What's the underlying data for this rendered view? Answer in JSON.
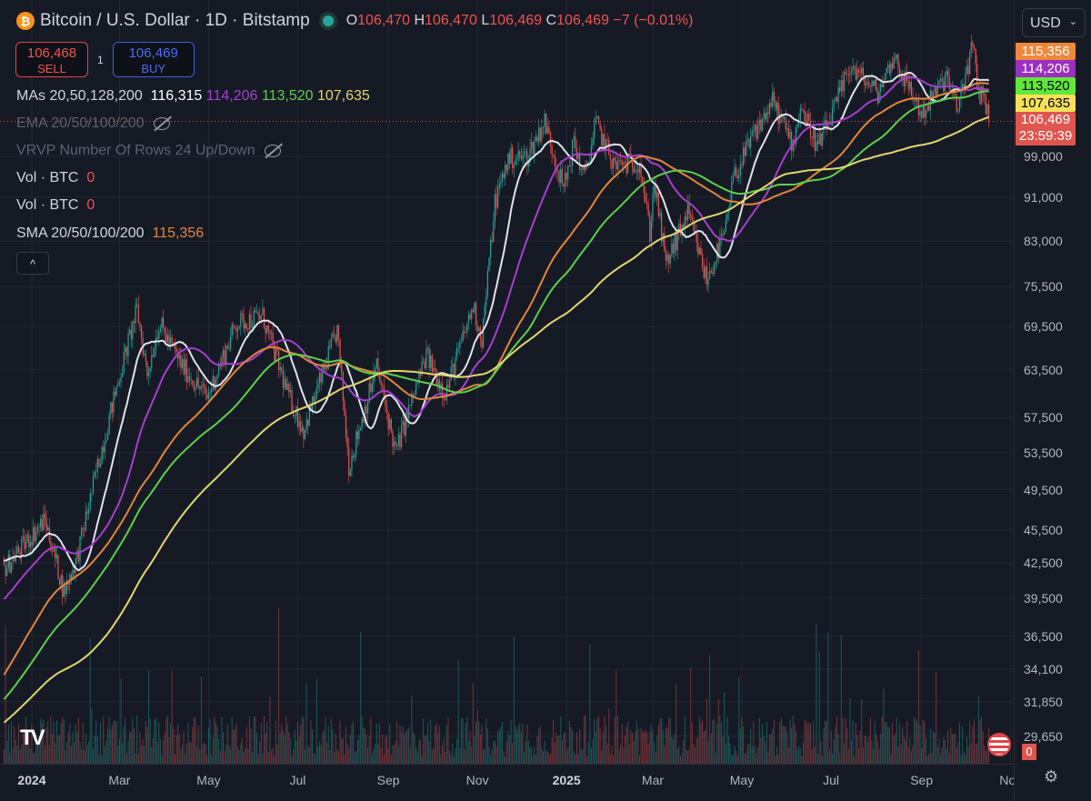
{
  "header": {
    "title": "Bitcoin / U.S. Dollar · 1D · Bitstamp",
    "o_label": "O",
    "o": "106,470",
    "h_label": "H",
    "h": "106,470",
    "l_label": "L",
    "l": "106,469",
    "c_label": "C",
    "c": "106,469",
    "change": "−7 (−0.01%)",
    "market_status": "open"
  },
  "trade": {
    "sell_price": "106,468",
    "sell_label": "SELL",
    "qty": "1",
    "buy_price": "106,469",
    "buy_label": "BUY"
  },
  "legend": {
    "mas": {
      "label": "MAs 20,50,128,200",
      "v1": "116,315",
      "v2": "114,206",
      "v3": "113,520",
      "v4": "107,635"
    },
    "ema": {
      "label": "EMA 20/50/100/200"
    },
    "vrvp": {
      "label": "VRVP Number Of Rows 24 Up/Down"
    },
    "vol1": {
      "label": "Vol · BTC",
      "value": "0"
    },
    "vol2": {
      "label": "Vol · BTC",
      "value": "0"
    },
    "sma": {
      "label": "SMA 20/50/100/200",
      "value": "115,356"
    },
    "collapse": "^"
  },
  "scale": {
    "currency": "USD",
    "tags": [
      {
        "v": "115,356",
        "bg": "#f0883a",
        "fg": "#ffffff"
      },
      {
        "v": "114,206",
        "bg": "#9b2fc0",
        "fg": "#ffffff"
      },
      {
        "v": "113,520",
        "bg": "#5fe83a",
        "fg": "#000000"
      },
      {
        "v": "107,635",
        "bg": "#f6e05a",
        "fg": "#000000"
      }
    ],
    "last_price": "106,469",
    "countdown": "23:59:39",
    "volume_tag": "0"
  },
  "colors": {
    "up": "#26a69a",
    "down": "#ef5350",
    "ma20": "#e0e3eb",
    "ma50": "#a63fd0",
    "sma100": "#e4863c",
    "ma128": "#5ed04c",
    "ma200": "#e3d66e"
  },
  "chart_data": {
    "type": "candlestick",
    "scale": "log",
    "grid": true,
    "y_ticks": [
      99000,
      91000,
      83000,
      75500,
      69500,
      63500,
      57500,
      53500,
      49500,
      45500,
      42500,
      39500,
      36500,
      34100,
      31850,
      29650
    ],
    "y_tick_labels": [
      "99,000",
      "91,000",
      "83,000",
      "75,500",
      "69,500",
      "63,500",
      "57,500",
      "53,500",
      "49,500",
      "45,500",
      "42,500",
      "39,500",
      "36,500",
      "34,100",
      "31,850",
      "29,650"
    ],
    "x_ticks": [
      {
        "d": "2024-01-01",
        "t": "2024",
        "b": true
      },
      {
        "d": "2024-03-01",
        "t": "Mar"
      },
      {
        "d": "2024-05-01",
        "t": "May"
      },
      {
        "d": "2024-07-01",
        "t": "Jul"
      },
      {
        "d": "2024-09-01",
        "t": "Sep"
      },
      {
        "d": "2024-11-01",
        "t": "Nov"
      },
      {
        "d": "2025-01-01",
        "t": "2025",
        "b": true
      },
      {
        "d": "2025-03-01",
        "t": "Mar"
      },
      {
        "d": "2025-05-01",
        "t": "May"
      },
      {
        "d": "2025-07-01",
        "t": "Jul"
      },
      {
        "d": "2025-09-01",
        "t": "Sep"
      },
      {
        "d": "2025-11-01",
        "t": "Nov"
      }
    ],
    "approx_closes": [
      [
        "2023-12-13",
        42000
      ],
      [
        "2024-01-10",
        46500
      ],
      [
        "2024-01-23",
        40000
      ],
      [
        "2024-02-01",
        43000
      ],
      [
        "2024-02-15",
        52000
      ],
      [
        "2024-02-29",
        62000
      ],
      [
        "2024-03-13",
        72000
      ],
      [
        "2024-03-20",
        63000
      ],
      [
        "2024-03-28",
        70000
      ],
      [
        "2024-04-13",
        64000
      ],
      [
        "2024-04-30",
        60000
      ],
      [
        "2024-05-20",
        70000
      ],
      [
        "2024-06-07",
        71000
      ],
      [
        "2024-06-24",
        60500
      ],
      [
        "2024-07-05",
        56000
      ],
      [
        "2024-07-28",
        69000
      ],
      [
        "2024-08-05",
        52000
      ],
      [
        "2024-08-24",
        64000
      ],
      [
        "2024-09-06",
        53500
      ],
      [
        "2024-09-27",
        65500
      ],
      [
        "2024-10-10",
        60500
      ],
      [
        "2024-10-29",
        72500
      ],
      [
        "2024-11-04",
        67800
      ],
      [
        "2024-11-13",
        90000
      ],
      [
        "2024-11-22",
        98500
      ],
      [
        "2024-12-05",
        99000
      ],
      [
        "2024-12-17",
        106500
      ],
      [
        "2024-12-30",
        92500
      ],
      [
        "2025-01-06",
        102000
      ],
      [
        "2025-01-13",
        94500
      ],
      [
        "2025-01-21",
        106000
      ],
      [
        "2025-02-03",
        97000
      ],
      [
        "2025-02-20",
        98000
      ],
      [
        "2025-02-27",
        84500
      ],
      [
        "2025-03-02",
        94000
      ],
      [
        "2025-03-10",
        79000
      ],
      [
        "2025-03-25",
        88000
      ],
      [
        "2025-04-07",
        76500
      ],
      [
        "2025-04-20",
        85000
      ],
      [
        "2025-04-25",
        94500
      ],
      [
        "2025-05-10",
        104000
      ],
      [
        "2025-05-22",
        111000
      ],
      [
        "2025-06-05",
        101500
      ],
      [
        "2025-06-10",
        110000
      ],
      [
        "2025-06-22",
        101000
      ],
      [
        "2025-07-03",
        109000
      ],
      [
        "2025-07-14",
        119500
      ],
      [
        "2025-08-02",
        113000
      ],
      [
        "2025-08-13",
        122000
      ],
      [
        "2025-09-01",
        108000
      ],
      [
        "2025-09-18",
        117000
      ],
      [
        "2025-09-25",
        109000
      ],
      [
        "2025-10-06",
        124500
      ],
      [
        "2025-10-10",
        113000
      ],
      [
        "2025-10-14",
        112500
      ],
      [
        "2025-10-17",
        106469
      ]
    ],
    "series": [
      {
        "name": "MAs 20",
        "period": 20
      },
      {
        "name": "MAs 50",
        "period": 50
      },
      {
        "name": "SMA 100",
        "period": 100
      },
      {
        "name": "MAs 128",
        "period": 128
      },
      {
        "name": "MAs 200",
        "period": 200
      }
    ]
  }
}
